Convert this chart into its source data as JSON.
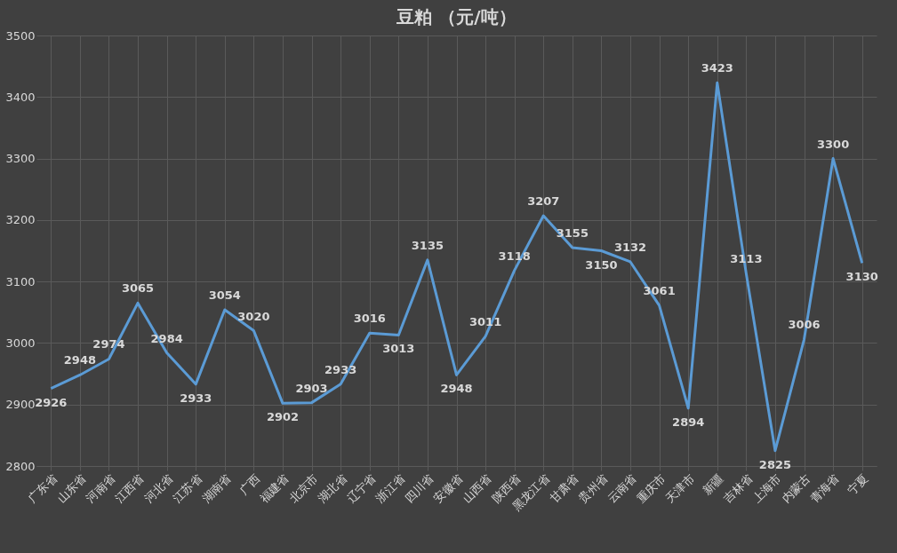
{
  "chart_data": {
    "type": "line",
    "title": "豆粕 （元/吨）",
    "categories": [
      "广东省",
      "山东省",
      "河南省",
      "江西省",
      "河北省",
      "江苏省",
      "湖南省",
      "广西",
      "福建省",
      "北京市",
      "湖北省",
      "辽宁省",
      "浙江省",
      "四川省",
      "安徽省",
      "山西省",
      "陕西省",
      "黑龙江省",
      "甘肃省",
      "贵州省",
      "云南省",
      "重庆市",
      "天津市",
      "新疆",
      "吉林省",
      "上海市",
      "内蒙古",
      "青海省",
      "宁夏"
    ],
    "series": [
      {
        "color": "#5b9bd5",
        "values": [
          2926,
          2948,
          2974,
          3065,
          2984,
          2933,
          3054,
          3020,
          2902,
          2903,
          2933,
          3016,
          3013,
          3135,
          2948,
          3011,
          3118,
          3207,
          3155,
          3150,
          3132,
          3061,
          2894,
          3423,
          3113,
          2825,
          3006,
          3300,
          3130
        ]
      }
    ],
    "ylim": [
      2800,
      3500
    ],
    "yticks": [
      2800,
      2900,
      3000,
      3100,
      3200,
      3300,
      3400,
      3500
    ],
    "grid": true,
    "data_labels": true,
    "marker": "none",
    "line_style": "solid"
  }
}
